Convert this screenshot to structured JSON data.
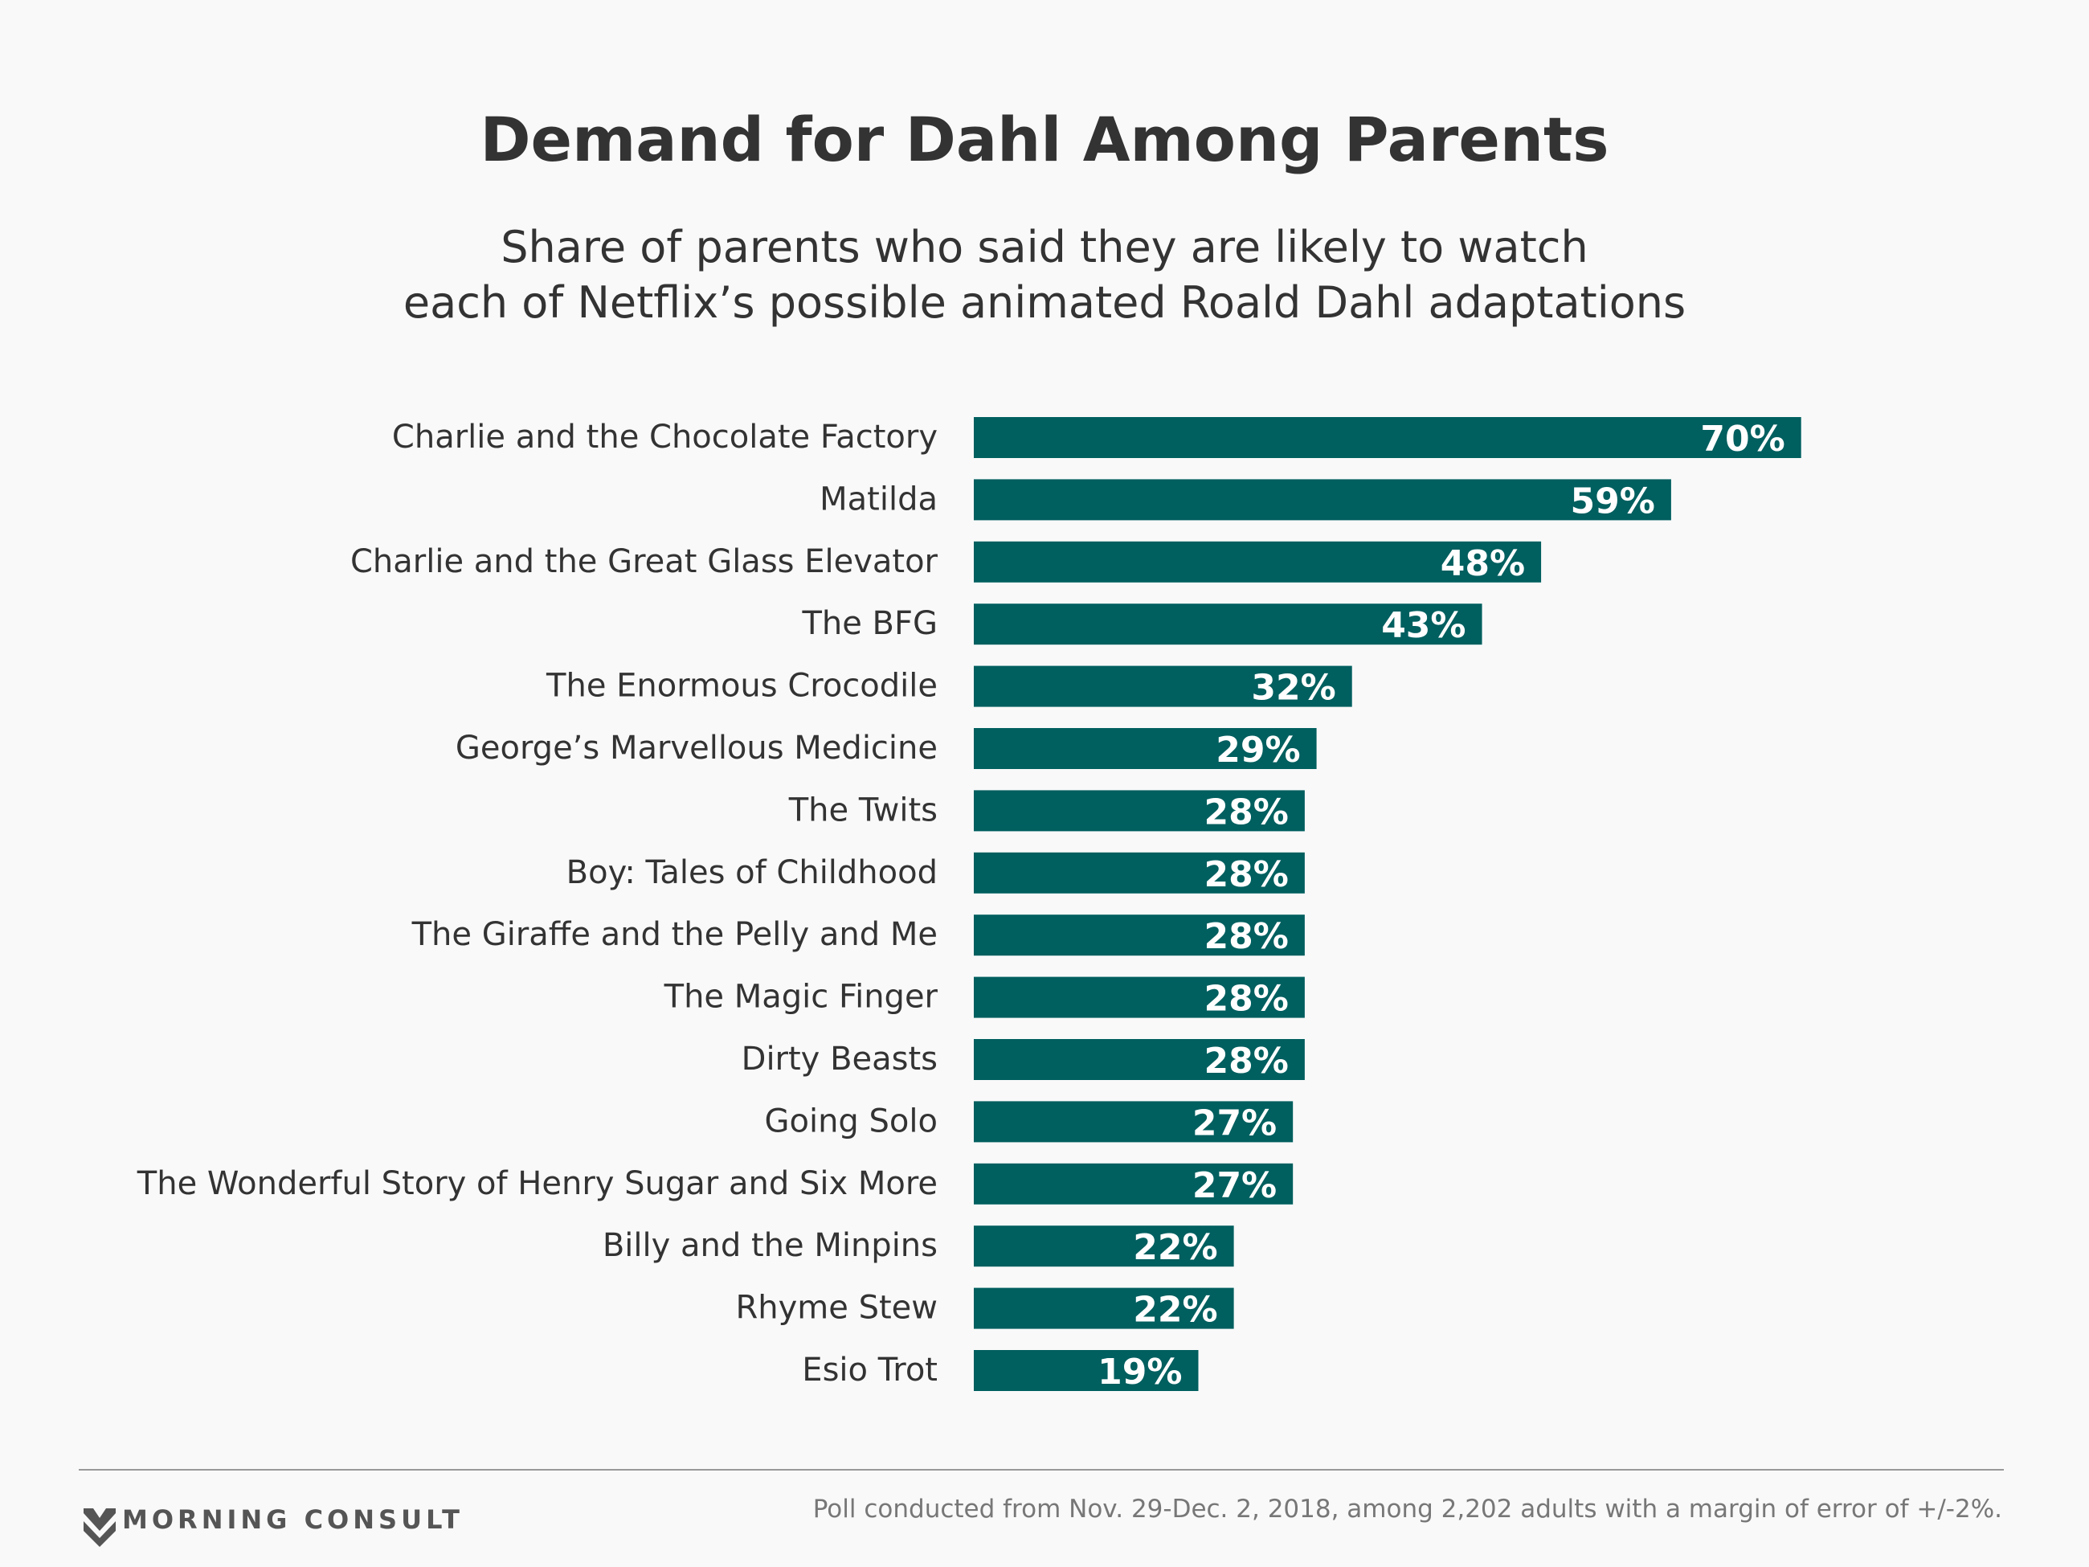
{
  "title": "Demand for Dahl Among Parents",
  "subtitle_lines": [
    "Share of parents who said they are likely to watch",
    "each of Netflix’s possible animated Roald Dahl adaptations"
  ],
  "chart_data": {
    "type": "bar",
    "orientation": "horizontal",
    "categories": [
      "Charlie and the Chocolate Factory",
      "Matilda",
      "Charlie and the Great Glass Elevator",
      "The BFG",
      "The Enormous Crocodile",
      "George’s Marvellous Medicine",
      "The Twits",
      "Boy: Tales of Childhood",
      "The Giraffe and the Pelly and Me",
      "The Magic Finger",
      "Dirty Beasts",
      "Going Solo",
      "The Wonderful Story of Henry Sugar and Six More",
      "Billy and the Minpins",
      "Rhyme Stew",
      "Esio Trot"
    ],
    "values": [
      70,
      59,
      48,
      43,
      32,
      29,
      28,
      28,
      28,
      28,
      28,
      27,
      27,
      22,
      22,
      19
    ],
    "value_labels": [
      "70%",
      "59%",
      "48%",
      "43%",
      "32%",
      "29%",
      "28%",
      "28%",
      "28%",
      "28%",
      "28%",
      "27%",
      "27%",
      "22%",
      "22%",
      "19%"
    ],
    "xlim": [
      0,
      70
    ],
    "grid": false,
    "legend": "none",
    "bar_color": "#005f5f"
  },
  "footer": {
    "brand": "MORNING CONSULT",
    "note": "Poll conducted from Nov. 29-Dec. 2, 2018, among 2,202 adults with a margin of error of +/-2%."
  },
  "colors": {
    "background": "#f9f9f9",
    "text": "#333333",
    "bar": "#005f5f",
    "rule": "#999999"
  }
}
